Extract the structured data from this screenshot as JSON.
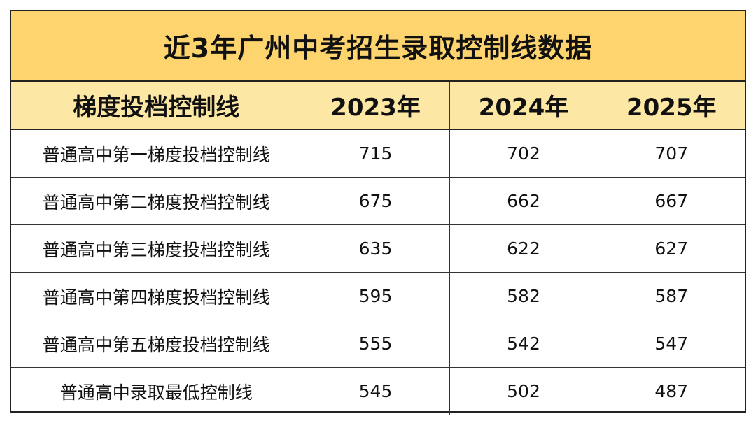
{
  "title": "近3年广州中考招生录取控制线数据",
  "header": {
    "col_label": "梯度投档控制线",
    "years": [
      "2023年",
      "2024年",
      "2025年"
    ]
  },
  "rows": [
    {
      "label": "普通高中第一梯度投档控制线",
      "values": [
        "715",
        "702",
        "707"
      ]
    },
    {
      "label": "普通高中第二梯度投档控制线",
      "values": [
        "675",
        "662",
        "667"
      ]
    },
    {
      "label": "普通高中第三梯度投档控制线",
      "values": [
        "635",
        "622",
        "627"
      ]
    },
    {
      "label": "普通高中第四梯度投档控制线",
      "values": [
        "595",
        "582",
        "587"
      ]
    },
    {
      "label": "普通高中第五梯度投档控制线",
      "values": [
        "555",
        "542",
        "547"
      ]
    },
    {
      "label": "普通高中录取最低控制线",
      "values": [
        "545",
        "502",
        "487"
      ]
    }
  ],
  "colors": {
    "title_bg": "#fdd46e",
    "header_bg": "#fde7a4",
    "border": "#222222"
  }
}
